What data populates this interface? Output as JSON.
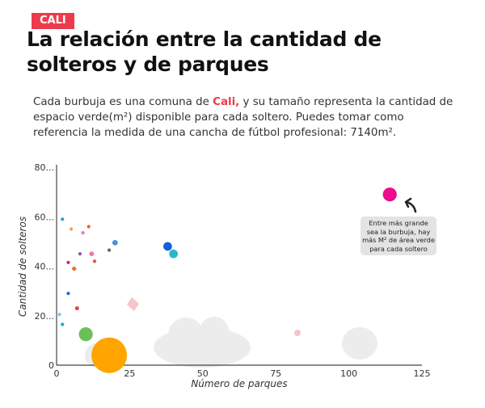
{
  "tag": "CALI",
  "title": "La relación entre la cantidad de solteros y de parques",
  "description": {
    "before": "Cada burbuja es una comuna de ",
    "highlight": "Cali,",
    "after": " y su tamaño representa la cantidad de espacio verde(m²) disponible para cada soltero. Puedes tomar como referencia la medida de una cancha de fútbol profesional: 7140m²."
  },
  "annotation": "Entre más grande sea la burbuja, hay más M² de área verde para cada soltero",
  "colors": {
    "accent": "#ec3b4c",
    "axis": "#444444"
  },
  "chart_data": {
    "type": "scatter",
    "xlabel": "Número de parques",
    "ylabel": "Cantidad de solteros",
    "xlim": [
      0,
      125
    ],
    "ylim": [
      0,
      80
    ],
    "xticks": [
      "0",
      "25",
      "50",
      "75",
      "100",
      "125"
    ],
    "yticks": [
      "0",
      "20...",
      "40...",
      "60...",
      "80..."
    ],
    "grid": false,
    "points": [
      {
        "x": 2,
        "y": 59,
        "size": 1,
        "color": "#1e9be8"
      },
      {
        "x": 5,
        "y": 55,
        "size": 1,
        "color": "#f7a04a"
      },
      {
        "x": 11,
        "y": 56,
        "size": 1,
        "color": "#f0602a"
      },
      {
        "x": 9,
        "y": 53.5,
        "size": 1,
        "color": "#d77cc6"
      },
      {
        "x": 20,
        "y": 49.5,
        "size": 2,
        "color": "#4a90d9"
      },
      {
        "x": 18,
        "y": 46.5,
        "size": 1,
        "color": "#666666"
      },
      {
        "x": 12,
        "y": 45,
        "size": 1.6,
        "color": "#f07aa5"
      },
      {
        "x": 8,
        "y": 45,
        "size": 1,
        "color": "#8e4fb0"
      },
      {
        "x": 13,
        "y": 42,
        "size": 1,
        "color": "#d9583a"
      },
      {
        "x": 4,
        "y": 41.5,
        "size": 1,
        "color": "#e0245e"
      },
      {
        "x": 6,
        "y": 39,
        "size": 1.4,
        "color": "#f26a3d"
      },
      {
        "x": 4,
        "y": 29,
        "size": 1,
        "color": "#1a6be8"
      },
      {
        "x": 7,
        "y": 23,
        "size": 1.3,
        "color": "#e8404f"
      },
      {
        "x": 1,
        "y": 20.5,
        "size": 0.9,
        "color": "#6fc6f2"
      },
      {
        "x": 2,
        "y": 16.5,
        "size": 1,
        "color": "#12aed0"
      },
      {
        "x": 10,
        "y": 12.5,
        "size": 6,
        "color": "#6abf5b"
      },
      {
        "x": 18,
        "y": 4,
        "size": 17,
        "color": "#ffa500"
      },
      {
        "x": 38,
        "y": 48,
        "size": 3.5,
        "color": "#1560d8"
      },
      {
        "x": 40,
        "y": 45,
        "size": 3.5,
        "color": "#2bb5cf"
      },
      {
        "x": 114,
        "y": 69,
        "size": 6,
        "color": "#ec0e8c"
      }
    ]
  }
}
